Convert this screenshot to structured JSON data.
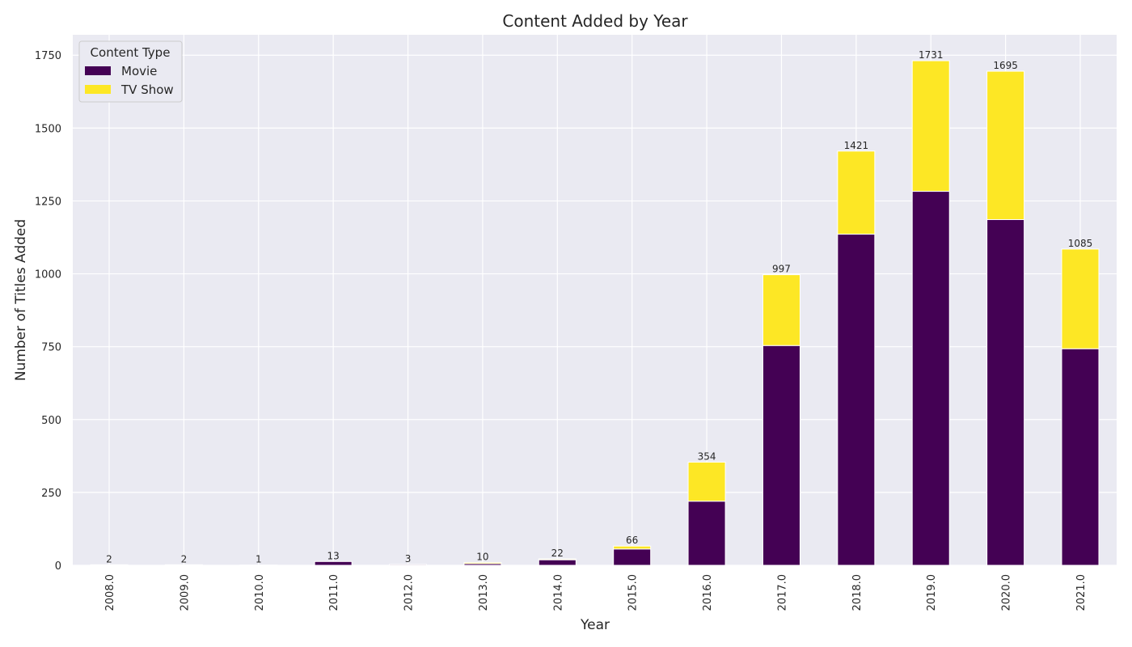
{
  "chart_data": {
    "type": "bar",
    "stacked": true,
    "title": "Content Added by Year",
    "xlabel": "Year",
    "ylabel": "Number of Titles Added",
    "categories": [
      "2008.0",
      "2009.0",
      "2010.0",
      "2011.0",
      "2012.0",
      "2013.0",
      "2014.0",
      "2015.0",
      "2016.0",
      "2017.0",
      "2018.0",
      "2019.0",
      "2020.0",
      "2021.0"
    ],
    "series": [
      {
        "name": "Movie",
        "color": "#440154",
        "values": [
          1,
          2,
          1,
          13,
          3,
          6,
          19,
          56,
          220,
          754,
          1136,
          1283,
          1186,
          743
        ]
      },
      {
        "name": "TV Show",
        "color": "#fde725",
        "values": [
          1,
          0,
          0,
          0,
          0,
          4,
          3,
          10,
          134,
          243,
          285,
          448,
          509,
          342
        ]
      }
    ],
    "totals": [
      2,
      2,
      1,
      13,
      3,
      10,
      22,
      66,
      354,
      997,
      1421,
      1731,
      1695,
      1085
    ],
    "ylim": [
      0,
      1820
    ],
    "yticks": [
      0,
      250,
      500,
      750,
      1000,
      1250,
      1500,
      1750
    ],
    "grid": true,
    "legend": {
      "title": "Content Type",
      "placement": "top-left"
    }
  }
}
